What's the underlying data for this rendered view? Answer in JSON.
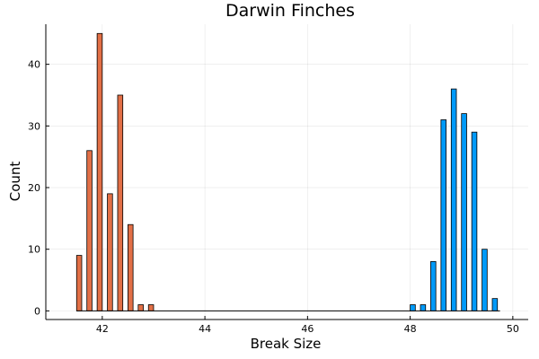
{
  "chart_data": {
    "type": "bar",
    "title": "Darwin Finches",
    "xlabel": "Break Size",
    "ylabel": "Count",
    "xlim": [
      40.9,
      50.3
    ],
    "ylim": [
      -1.4,
      46.5
    ],
    "xticks": [
      42,
      44,
      46,
      48,
      50
    ],
    "yticks": [
      0,
      10,
      20,
      30,
      40
    ],
    "grid": true,
    "legend": "none",
    "bar_width": 0.1,
    "baseline_range": [
      41.5,
      49.75
    ],
    "series": [
      {
        "color": "#e26f46",
        "bins": [
          {
            "x": 41.55,
            "y": 9
          },
          {
            "x": 41.75,
            "y": 26
          },
          {
            "x": 41.95,
            "y": 45
          },
          {
            "x": 42.15,
            "y": 19
          },
          {
            "x": 42.35,
            "y": 35
          },
          {
            "x": 42.55,
            "y": 14
          },
          {
            "x": 42.75,
            "y": 1
          },
          {
            "x": 42.95,
            "y": 1
          }
        ]
      },
      {
        "color": "#009af9",
        "bins": [
          {
            "x": 48.05,
            "y": 1
          },
          {
            "x": 48.25,
            "y": 1
          },
          {
            "x": 48.45,
            "y": 8
          },
          {
            "x": 48.65,
            "y": 31
          },
          {
            "x": 48.85,
            "y": 36
          },
          {
            "x": 49.05,
            "y": 32
          },
          {
            "x": 49.25,
            "y": 29
          },
          {
            "x": 49.45,
            "y": 10
          },
          {
            "x": 49.65,
            "y": 2
          }
        ]
      }
    ]
  }
}
